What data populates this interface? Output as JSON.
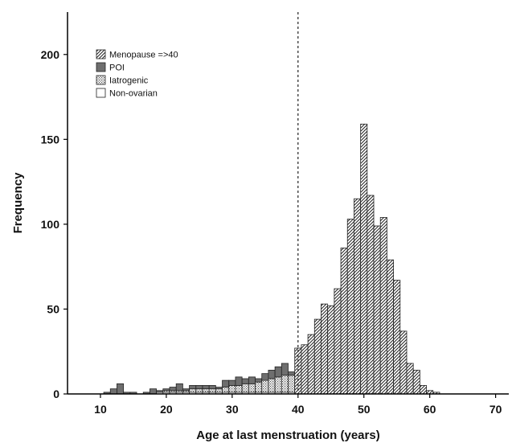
{
  "chart_data": {
    "type": "bar",
    "subtype": "stacked-histogram",
    "title": "",
    "xlabel": "Age at last menstruation (years)",
    "ylabel": "Frequency",
    "xlim": [
      5,
      72
    ],
    "ylim": [
      0,
      225
    ],
    "xticks": [
      10,
      20,
      30,
      40,
      50,
      60,
      70
    ],
    "yticks": [
      0,
      50,
      100,
      150,
      200
    ],
    "bin_width": 1,
    "reference_line": {
      "x": 40,
      "style": "dashed"
    },
    "grid": false,
    "legend_position": "top-left",
    "x": [
      11,
      12,
      13,
      14,
      15,
      16,
      17,
      18,
      19,
      20,
      21,
      22,
      23,
      24,
      25,
      26,
      27,
      28,
      29,
      30,
      31,
      32,
      33,
      34,
      35,
      36,
      37,
      38,
      39,
      40,
      41,
      42,
      43,
      44,
      45,
      46,
      47,
      48,
      49,
      50,
      51,
      52,
      53,
      54,
      55,
      56,
      57,
      58,
      59,
      60,
      61
    ],
    "series": [
      {
        "name": "Non-ovarian",
        "fill": "blank",
        "values": [
          0,
          0,
          0,
          0,
          0,
          0,
          0,
          0,
          1,
          1,
          1,
          1,
          1,
          1,
          1,
          1,
          1,
          1,
          1,
          1,
          1,
          1,
          1,
          1,
          1,
          1,
          1,
          1,
          1,
          0,
          0,
          0,
          0,
          0,
          0,
          0,
          0,
          0,
          0,
          0,
          0,
          0,
          0,
          0,
          0,
          0,
          0,
          0,
          0,
          0,
          0
        ]
      },
      {
        "name": "Iatrogenic",
        "fill": "dots",
        "values": [
          0,
          0,
          0,
          0,
          0,
          0,
          0,
          0,
          0,
          1,
          1,
          1,
          1,
          2,
          2,
          2,
          2,
          2,
          3,
          4,
          4,
          5,
          5,
          6,
          7,
          8,
          9,
          10,
          10,
          0,
          0,
          0,
          0,
          0,
          0,
          0,
          0,
          0,
          0,
          0,
          0,
          0,
          0,
          0,
          0,
          0,
          0,
          0,
          0,
          0,
          0
        ]
      },
      {
        "name": "POI",
        "fill": "solid-grey",
        "values": [
          1,
          3,
          6,
          1,
          1,
          0,
          1,
          3,
          1,
          1,
          2,
          4,
          1,
          2,
          2,
          2,
          2,
          1,
          4,
          3,
          5,
          3,
          4,
          2,
          4,
          5,
          6,
          7,
          2,
          0,
          0,
          0,
          0,
          0,
          0,
          0,
          0,
          0,
          0,
          0,
          0,
          0,
          0,
          0,
          0,
          0,
          0,
          0,
          0,
          0,
          0
        ]
      },
      {
        "name": "Menopause =>40",
        "fill": "diagonal-hatch",
        "values": [
          0,
          0,
          0,
          0,
          0,
          0,
          0,
          0,
          0,
          0,
          0,
          0,
          0,
          0,
          0,
          0,
          0,
          0,
          0,
          0,
          0,
          0,
          0,
          0,
          0,
          0,
          0,
          0,
          0,
          27,
          29,
          35,
          44,
          53,
          52,
          62,
          86,
          103,
          115,
          159,
          117,
          99,
          104,
          79,
          67,
          37,
          18,
          14,
          5,
          2,
          1
        ]
      }
    ]
  }
}
